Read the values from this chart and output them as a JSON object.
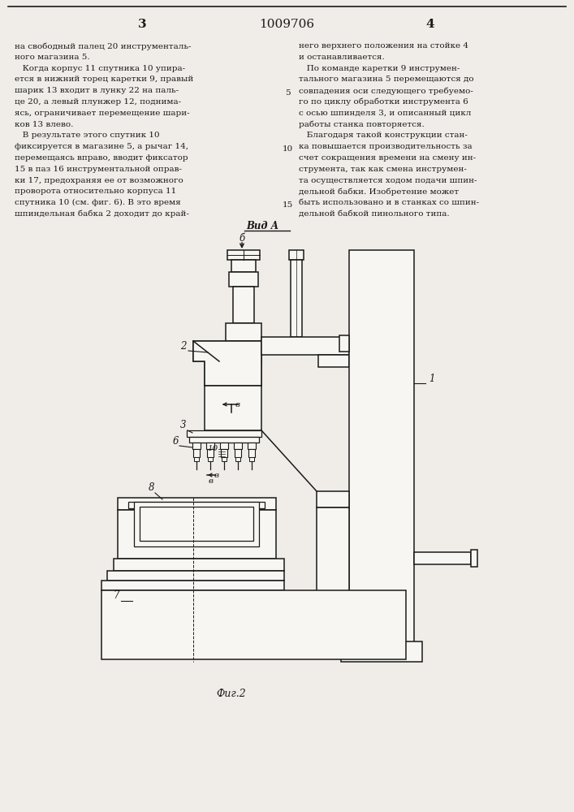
{
  "page_num_left": "3",
  "patent_num": "1009706",
  "page_num_right": "4",
  "bg_color": "#f0ede8",
  "text_color": "#1a1a1a",
  "col1_text": [
    "на свободный палец 20 инструменталь-",
    "ного магазина 5.",
    "   Когда корпус 11 спутника 10 упира-",
    "ется в нижний торец каретки 9, правый",
    "шарик 13 входит в лунку 22 на паль-",
    "це 20, а левый плунжер 12, поднима-",
    "ясь, ограничивает перемещение шари-",
    "ков 13 влево.",
    "   В результате этого спутник 10",
    "фиксируется в магазине 5, а рычаг 14,",
    "перемещаясь вправо, вводит фиксатор",
    "15 в паз 16 инструментальной оправ-",
    "ки 17, предохраняя ее от возможного",
    "проворота относительно корпуса 11",
    "спутника 10 (см. фиг. 6). В это время",
    "шпиндельная бабка 2 доходит до край-"
  ],
  "col2_text": [
    "него верхнего положения на стойке 4",
    "и останавливается.",
    "   По команде каретки 9 инструмен-",
    "тального магазина 5 перемещаются до",
    "совпадения оси следующего требуемо-",
    "го по циклу обработки инструмента 6",
    "с осью шпинделя 3, и описанный цикл",
    "работы станка повторяется.",
    "   Благодаря такой конструкции стан-",
    "ка повышается производительность за",
    "счет сокращения времени на смену ин-",
    "струмента, так как смена инструмен-",
    "та осуществляется ходом подачи шпин-",
    "дельной бабки. Изобретение может",
    "быть использовано и в станках со шпин-",
    "дельной бабкой пинольного типа."
  ],
  "fig_label": "Фиг.2",
  "view_label": "Вид А"
}
